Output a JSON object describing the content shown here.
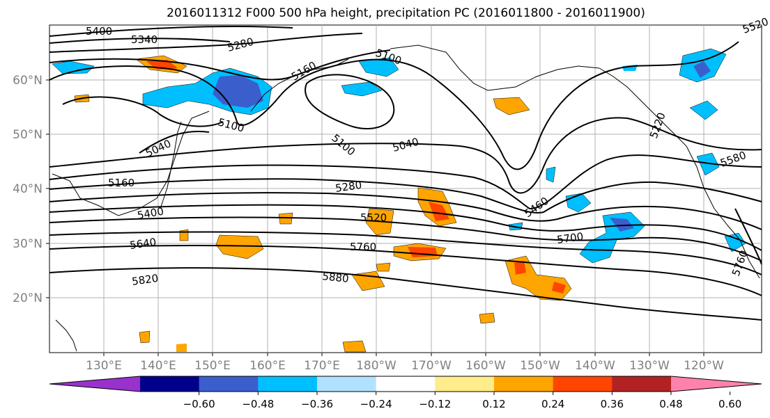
{
  "title": "2016011312 F000 500 hPa height, precipitation PC (2016011800 - 2016011900)",
  "map": {
    "lon_ticks": [
      "130°E",
      "140°E",
      "150°E",
      "160°E",
      "170°E",
      "180°W",
      "170°W",
      "160°W",
      "150°W",
      "140°W",
      "130°W",
      "120°W"
    ],
    "lat_ticks": [
      "60°N",
      "50°N",
      "40°N",
      "30°N",
      "20°N"
    ],
    "tick_color": "#808080",
    "contour_labels": [
      "5400",
      "5340",
      "5280",
      "5100",
      "5160",
      "5100",
      "5040",
      "5100",
      "5040",
      "5160",
      "5280",
      "5400",
      "5520",
      "5460",
      "5640",
      "5760",
      "5700",
      "5820",
      "5880",
      "5580",
      "5760",
      "5220",
      "5520"
    ]
  },
  "colorbar": {
    "ticks": [
      "−0.60",
      "−0.48",
      "−0.36",
      "−0.24",
      "−0.12",
      "0.12",
      "0.24",
      "0.36",
      "0.48",
      "0.60"
    ],
    "colors": [
      "#9932cc",
      "#00008b",
      "#3a5fcd",
      "#00bfff",
      "#b0e2ff",
      "#ffffff",
      "#ffec8b",
      "#ffa500",
      "#ff4500",
      "#b22222",
      "#ff82ab"
    ]
  }
}
